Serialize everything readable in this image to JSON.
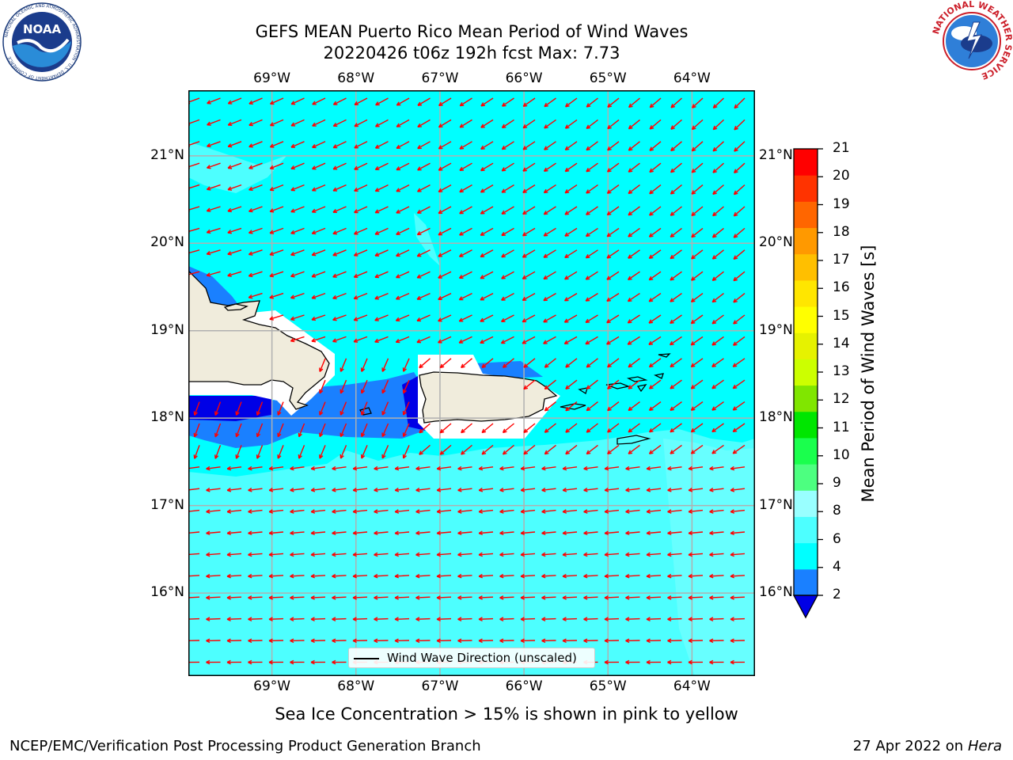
{
  "title_line1": "GEFS MEAN Puerto Rico Mean Period of Wind Waves",
  "title_line2": "20220426 t06z 192h fcst   Max: 7.73",
  "logos": {
    "left": {
      "name": "noaa-logo",
      "text": "NOAA",
      "ring_text": "NATIONAL OCEANIC AND ATMOSPHERIC ADMINISTRATION · U.S. DEPARTMENT OF COMMERCE"
    },
    "right": {
      "name": "nws-logo",
      "ring_text": "NATIONAL WEATHER SERVICE"
    }
  },
  "map": {
    "lon_labels": [
      "69°W",
      "68°W",
      "67°W",
      "66°W",
      "65°W",
      "64°W"
    ],
    "lat_labels": [
      "21°N",
      "20°N",
      "19°N",
      "18°N",
      "17°N",
      "16°N"
    ],
    "lon_values": [
      -69,
      -68,
      -67,
      -66,
      -65,
      -64
    ],
    "lat_values": [
      21,
      20,
      19,
      18,
      17,
      16
    ],
    "lon_range": [
      -69.995,
      -63.25
    ],
    "lat_range": [
      15.05,
      21.75
    ],
    "ocean_color": "#00ffff",
    "light_color": "#4dffff",
    "pale_color": "#99ffff",
    "mid_blue": "#1a80ff",
    "deep_blue": "#0000e6",
    "land_color": "#f0ecdc",
    "arrow_color": "#ff0000",
    "grid": true
  },
  "legend": {
    "label": "Wind Wave Direction (unscaled)"
  },
  "colorbar": {
    "label": "Mean Period of Wind Waves [s]",
    "ticks": [
      "21",
      "20",
      "19",
      "18",
      "17",
      "16",
      "15",
      "14",
      "13",
      "12",
      "11",
      "10",
      "9",
      "8",
      "6",
      "4",
      "2"
    ],
    "levels": [
      2,
      4,
      6,
      8,
      9,
      10,
      11,
      12,
      13,
      14,
      15,
      16,
      17,
      18,
      19,
      20,
      21
    ],
    "colors": [
      "#1a80ff",
      "#00ffff",
      "#4dffff",
      "#99ffff",
      "#4dff80",
      "#1aff4d",
      "#00e600",
      "#80e600",
      "#ccff00",
      "#e6f200",
      "#ffff00",
      "#ffe600",
      "#ffbf00",
      "#ff9900",
      "#ff6600",
      "#ff3300",
      "#ff0000"
    ],
    "under_color": "#0000e6"
  },
  "bottom_note": "Sea Ice Concentration > 15% is shown in pink to yellow",
  "footer_left": "NCEP/EMC/Verification Post Processing Product Generation Branch",
  "footer_right_prefix": "27 Apr 2022 on ",
  "footer_right_host": "Hera"
}
